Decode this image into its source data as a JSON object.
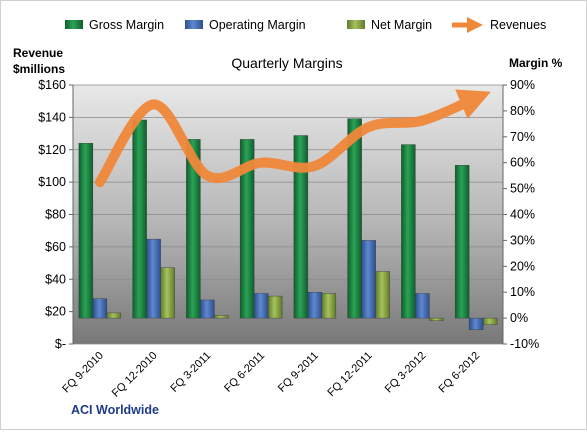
{
  "chart_data": {
    "type": "bar",
    "title": "Quarterly Margins",
    "categories": [
      "FQ 9-2010",
      "FQ 12-2010",
      "FQ 3-2011",
      "FQ 6-2011",
      "FQ 9-2011",
      "FQ 12-2011",
      "FQ 3-2012",
      "FQ 6-2012"
    ],
    "series": [
      {
        "name": "Gross Margin",
        "axis": "right",
        "kind": "bar",
        "color": "#1e8c47",
        "values": [
          67.5,
          76.5,
          69.0,
          69.0,
          70.5,
          77.0,
          67.0,
          59.0
        ]
      },
      {
        "name": "Operating Margin",
        "axis": "right",
        "kind": "bar",
        "color": "#4a72b8",
        "values": [
          7.5,
          30.5,
          7.0,
          9.5,
          10.0,
          30.0,
          9.5,
          -4.5
        ]
      },
      {
        "name": "Net Margin",
        "axis": "right",
        "kind": "bar",
        "color": "#8fae4a",
        "values": [
          2.0,
          19.5,
          1.0,
          8.5,
          9.5,
          18.0,
          -1.0,
          -2.5
        ]
      },
      {
        "name": "Revenues",
        "axis": "left",
        "kind": "line",
        "color": "#f0883a",
        "values": [
          100,
          148,
          104,
          112,
          110,
          134,
          138,
          152
        ]
      }
    ],
    "left_axis": {
      "label_line1": "Revenue",
      "label_line2": "$millions",
      "min": 0,
      "max": 160,
      "ticks": [
        0,
        20,
        40,
        60,
        80,
        100,
        120,
        140,
        160
      ],
      "tick_labels": [
        "$-",
        "$20",
        "$40",
        "$60",
        "$80",
        "$100",
        "$120",
        "$140",
        "$160"
      ]
    },
    "right_axis": {
      "label": "Margin %",
      "min": -10,
      "max": 90,
      "ticks": [
        -10,
        0,
        10,
        20,
        30,
        40,
        50,
        60,
        70,
        80,
        90
      ],
      "tick_labels": [
        "-10%",
        "0%",
        "10%",
        "20%",
        "30%",
        "40%",
        "50%",
        "60%",
        "70%",
        "80%",
        "90%"
      ]
    },
    "grid": true,
    "legend_position": "top"
  },
  "company": "ACI Worldwide"
}
